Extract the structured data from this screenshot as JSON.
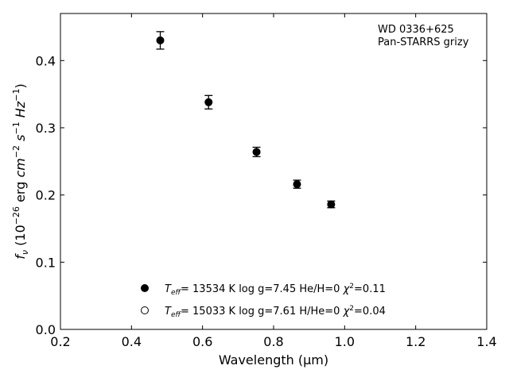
{
  "chart_data": {
    "type": "scatter",
    "title": "",
    "annotation": [
      "WD 0336+625",
      "Pan-STARRS grizy"
    ],
    "xlabel": "Wavelength (μm)",
    "ylabel": "fν (10⁻²⁶ erg cm⁻² s⁻¹ Hz⁻¹)",
    "xlim": [
      0.2,
      1.4
    ],
    "ylim": [
      0.0,
      0.47
    ],
    "xticks": [
      0.2,
      0.4,
      0.6,
      0.8,
      1.0,
      1.2,
      1.4
    ],
    "xtick_labels": [
      "0.2",
      "0.4",
      "0.6",
      "0.8",
      "1.0",
      "1.2",
      "1.4"
    ],
    "yticks": [
      0.0,
      0.1,
      0.2,
      0.3,
      0.4
    ],
    "ytick_labels": [
      "0.0",
      "0.1",
      "0.2",
      "0.3",
      "0.4"
    ],
    "grid": false,
    "legend_position": "bottom-center",
    "series": [
      {
        "kind": "observed",
        "marker": "filled-circle",
        "color": "#000000",
        "points": [
          {
            "x": 0.481,
            "y": 0.43,
            "err": 0.013
          },
          {
            "x": 0.617,
            "y": 0.338,
            "err": 0.01
          },
          {
            "x": 0.752,
            "y": 0.264,
            "err": 0.007
          },
          {
            "x": 0.866,
            "y": 0.216,
            "err": 0.006
          },
          {
            "x": 0.962,
            "y": 0.186,
            "err": 0.005
          }
        ]
      }
    ],
    "legend": [
      {
        "marker": "filled-circle",
        "teff_value": "= 13534 K",
        "rest": "log g=7.45  He/H=0",
        "chi2_value": "=0.11"
      },
      {
        "marker": "open-circle",
        "teff_value": "= 15033 K",
        "rest": "log g=7.61  H/He=0",
        "chi2_value": "=0.04"
      }
    ]
  }
}
